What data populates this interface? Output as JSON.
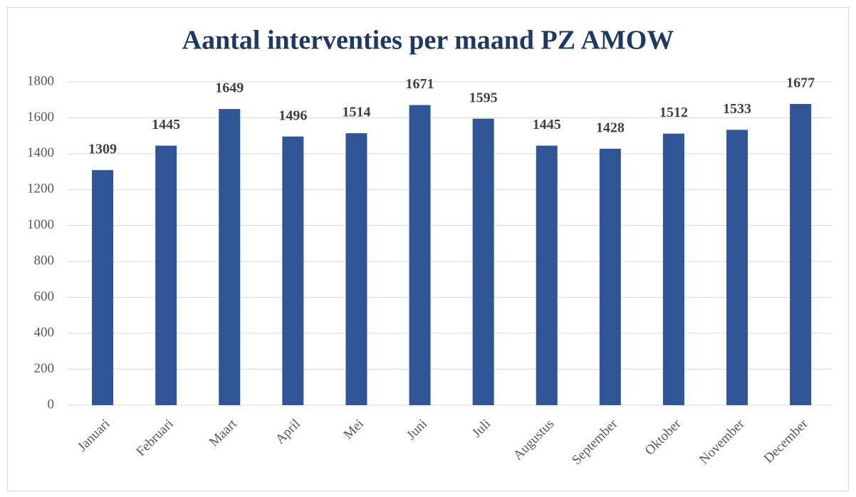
{
  "chart_data": {
    "type": "bar",
    "title": "Aantal interventies per maand PZ AMOW",
    "categories": [
      "Januari",
      "Februari",
      "Maart",
      "April",
      "Mei",
      "Juni",
      "Juli",
      "Augustus",
      "September",
      "Oktober",
      "November",
      "December"
    ],
    "values": [
      1309,
      1445,
      1649,
      1496,
      1514,
      1671,
      1595,
      1445,
      1428,
      1512,
      1533,
      1677
    ],
    "color": "#2f5597",
    "ylim": [
      0,
      1800
    ],
    "yticks": [
      0,
      200,
      400,
      600,
      800,
      1000,
      1200,
      1400,
      1600,
      1800
    ],
    "grid": true
  }
}
